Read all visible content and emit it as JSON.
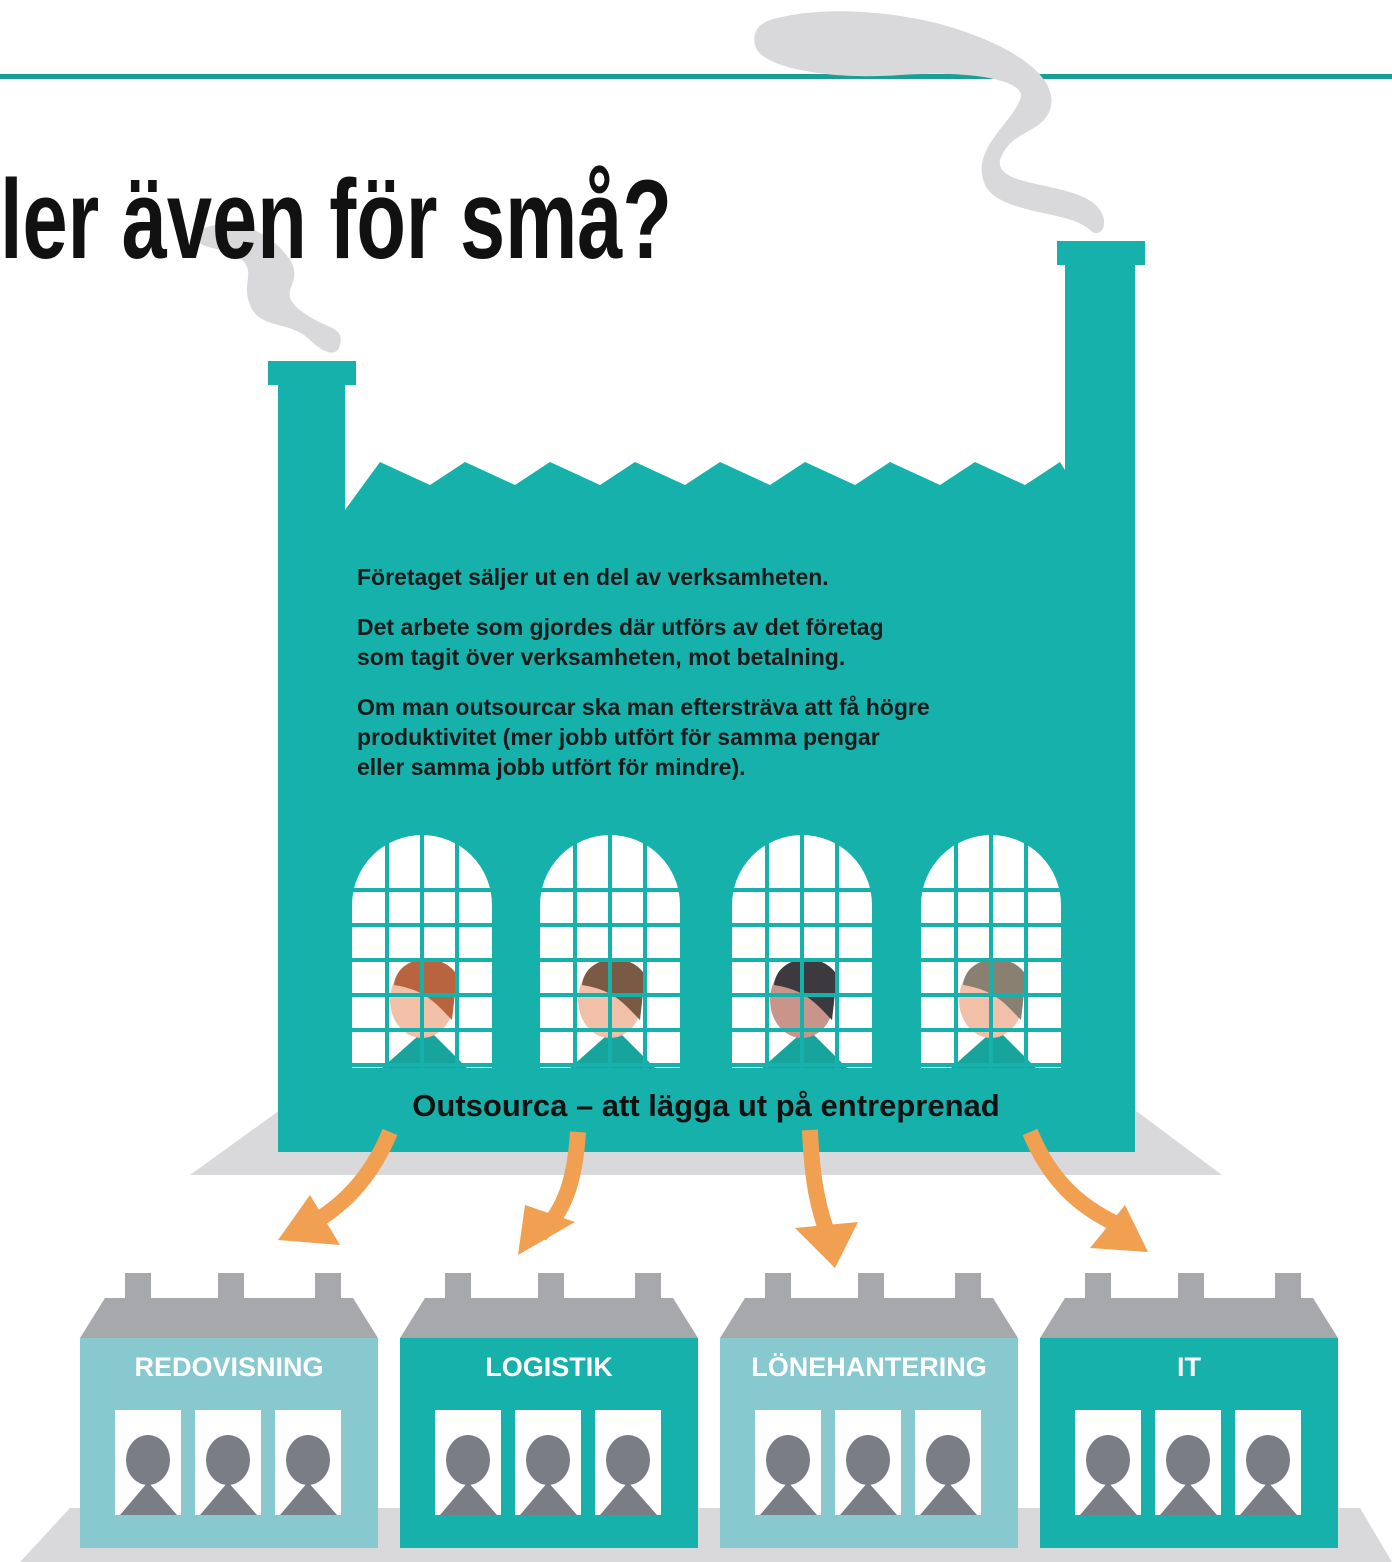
{
  "title": "ler även för små?",
  "factory": {
    "paragraphs": [
      [
        "Företaget säljer ut en del av verksamheten."
      ],
      [
        "Det arbete som gjordes där utförs av det företag",
        "som tagit över verksamheten, mot betalning."
      ],
      [
        "Om man outsourcar ska man eftersträva att få högre",
        "produktivitet (mer jobb utfört för samma pengar",
        "eller samma jobb utfört för mindre)."
      ]
    ],
    "caption": "Outsourca – att lägga ut på entreprenad"
  },
  "departments": [
    "REDOVISNING",
    "LOGISTIK",
    "LÖNEHANTERING",
    "IT"
  ]
}
